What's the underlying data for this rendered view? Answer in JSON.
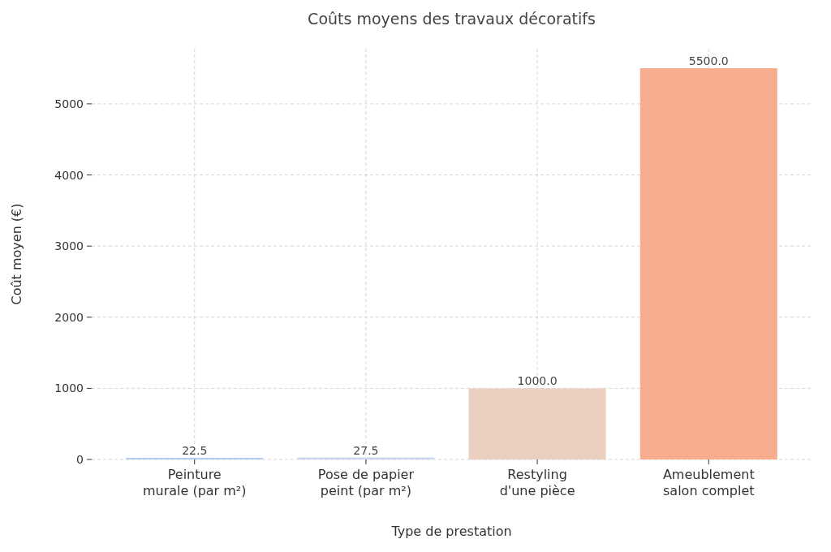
{
  "chart_data": {
    "type": "bar",
    "title": "Coûts moyens des travaux décoratifs",
    "xlabel": "Type de prestation",
    "ylabel": "Coût moyen (€)",
    "categories": [
      "Peinture murale (par m²)",
      "Pose de papier peint (par m²)",
      "Restyling d'une pièce",
      "Ameublement salon complet"
    ],
    "values": [
      22.5,
      27.5,
      1000,
      5500
    ],
    "colors": [
      "#b4cbf2",
      "#c9d8f0",
      "#ebd0c1",
      "#f6ac8d"
    ],
    "value_labels": [
      "22.5",
      "27.5",
      "1000.0",
      "5500.0"
    ],
    "ylim": [
      0,
      5775
    ],
    "yticks": [
      0,
      1000,
      2000,
      3000,
      4000,
      5000
    ],
    "grid": true
  }
}
